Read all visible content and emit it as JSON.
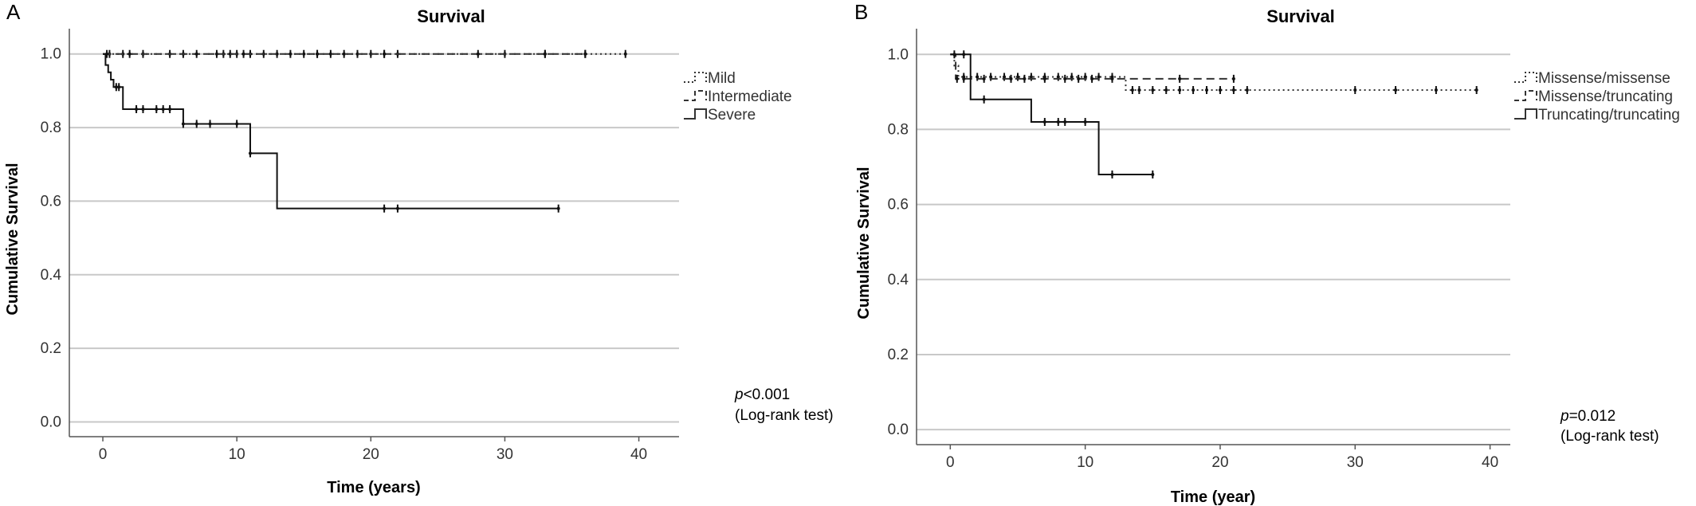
{
  "chart_data": [
    {
      "type": "line",
      "panel_label": "A",
      "title": "Survival",
      "xlabel": "Time (years)",
      "ylabel": "Cumulative Survival",
      "xlim": [
        -2.5,
        43
      ],
      "ylim": [
        -0.04,
        1.06
      ],
      "xticks": [
        0,
        10,
        20,
        30,
        40
      ],
      "yticks": [
        "0.0",
        "0.2",
        "0.4",
        "0.6",
        "0.8",
        "1.0"
      ],
      "grid": "horizontal",
      "legend_position": "right",
      "series": [
        {
          "name": "Mild",
          "style": "dotted",
          "steps": [
            [
              0,
              1.0
            ],
            [
              39,
              1.0
            ]
          ],
          "censored": [
            [
              0.5,
              1.0
            ],
            [
              1.5,
              1.0
            ],
            [
              3,
              1.0
            ],
            [
              5,
              1.0
            ],
            [
              6,
              1.0
            ],
            [
              8.5,
              1.0
            ],
            [
              9,
              1.0
            ],
            [
              9.5,
              1.0
            ],
            [
              10,
              1.0
            ],
            [
              11,
              1.0
            ],
            [
              12,
              1.0
            ],
            [
              13,
              1.0
            ],
            [
              15,
              1.0
            ],
            [
              16,
              1.0
            ],
            [
              17,
              1.0
            ],
            [
              18,
              1.0
            ],
            [
              19,
              1.0
            ],
            [
              20,
              1.0
            ],
            [
              21,
              1.0
            ],
            [
              22,
              1.0
            ],
            [
              30,
              1.0
            ],
            [
              33,
              1.0
            ],
            [
              36,
              1.0
            ],
            [
              39,
              1.0
            ]
          ]
        },
        {
          "name": "Intermediate",
          "style": "dashed",
          "steps": [
            [
              0,
              1.0
            ],
            [
              36,
              1.0
            ]
          ],
          "censored": [
            [
              0.3,
              1.0
            ],
            [
              2,
              1.0
            ],
            [
              7,
              1.0
            ],
            [
              10.5,
              1.0
            ],
            [
              14,
              1.0
            ],
            [
              16,
              1.0
            ],
            [
              21,
              1.0
            ],
            [
              28,
              1.0
            ],
            [
              33,
              1.0
            ],
            [
              36,
              1.0
            ]
          ]
        },
        {
          "name": "Severe",
          "style": "solid",
          "steps": [
            [
              0,
              1.0
            ],
            [
              0.2,
              0.97
            ],
            [
              0.4,
              0.95
            ],
            [
              0.6,
              0.93
            ],
            [
              0.8,
              0.91
            ],
            [
              1.5,
              0.85
            ],
            [
              6,
              0.81
            ],
            [
              11,
              0.73
            ],
            [
              13,
              0.58
            ],
            [
              34,
              0.58
            ]
          ],
          "censored": [
            [
              1.0,
              0.91
            ],
            [
              1.2,
              0.91
            ],
            [
              2.5,
              0.85
            ],
            [
              3,
              0.85
            ],
            [
              4,
              0.85
            ],
            [
              4.5,
              0.85
            ],
            [
              5,
              0.85
            ],
            [
              6,
              0.81
            ],
            [
              7,
              0.81
            ],
            [
              8,
              0.81
            ],
            [
              10,
              0.81
            ],
            [
              11,
              0.73
            ],
            [
              21,
              0.58
            ],
            [
              22,
              0.58
            ],
            [
              34,
              0.58
            ]
          ]
        }
      ],
      "annotation": {
        "p_symbol": "p",
        "p_value": "<0.001",
        "test": "(Log-rank test)"
      }
    },
    {
      "type": "line",
      "panel_label": "B",
      "title": "Survival",
      "xlabel": "Time (year)",
      "ylabel": "Cumulative Survival",
      "xlim": [
        -2.5,
        41.5
      ],
      "ylim": [
        -0.04,
        1.06
      ],
      "xticks": [
        0,
        10,
        20,
        30,
        40
      ],
      "yticks": [
        "0.0",
        "0.2",
        "0.4",
        "0.6",
        "0.8",
        "1.0"
      ],
      "grid": "horizontal",
      "legend_position": "right",
      "series": [
        {
          "name": "Missense/missense",
          "style": "dotted",
          "steps": [
            [
              0,
              1.0
            ],
            [
              0.3,
              0.97
            ],
            [
              0.6,
              0.94
            ],
            [
              13,
              0.905
            ],
            [
              39,
              0.905
            ]
          ],
          "censored": [
            [
              1,
              0.94
            ],
            [
              2,
              0.94
            ],
            [
              3,
              0.94
            ],
            [
              4,
              0.94
            ],
            [
              5,
              0.94
            ],
            [
              6,
              0.94
            ],
            [
              7,
              0.94
            ],
            [
              8,
              0.94
            ],
            [
              9,
              0.94
            ],
            [
              10,
              0.94
            ],
            [
              11,
              0.94
            ],
            [
              12,
              0.94
            ],
            [
              13.5,
              0.905
            ],
            [
              14,
              0.905
            ],
            [
              15,
              0.905
            ],
            [
              16,
              0.905
            ],
            [
              17,
              0.905
            ],
            [
              18,
              0.905
            ],
            [
              19,
              0.905
            ],
            [
              20,
              0.905
            ],
            [
              21,
              0.905
            ],
            [
              22,
              0.905
            ],
            [
              30,
              0.905
            ],
            [
              33,
              0.905
            ],
            [
              36,
              0.905
            ],
            [
              39,
              0.905
            ]
          ]
        },
        {
          "name": "Missense/truncating",
          "style": "dashed",
          "steps": [
            [
              0,
              1.0
            ],
            [
              0.4,
              0.935
            ],
            [
              21,
              0.935
            ]
          ],
          "censored": [
            [
              0.5,
              0.935
            ],
            [
              1,
              0.935
            ],
            [
              2.5,
              0.935
            ],
            [
              4.5,
              0.935
            ],
            [
              5.5,
              0.935
            ],
            [
              7,
              0.935
            ],
            [
              8.5,
              0.935
            ],
            [
              9.5,
              0.935
            ],
            [
              10.5,
              0.935
            ],
            [
              12,
              0.935
            ],
            [
              17,
              0.935
            ],
            [
              21,
              0.935
            ]
          ]
        },
        {
          "name": "Truncating/truncating",
          "style": "solid",
          "steps": [
            [
              0,
              1.0
            ],
            [
              1.5,
              0.88
            ],
            [
              6,
              0.82
            ],
            [
              11,
              0.68
            ],
            [
              15,
              0.68
            ]
          ],
          "censored": [
            [
              0.3,
              1.0
            ],
            [
              1,
              1.0
            ],
            [
              2.5,
              0.88
            ],
            [
              7,
              0.82
            ],
            [
              8,
              0.82
            ],
            [
              8.5,
              0.82
            ],
            [
              10,
              0.82
            ],
            [
              12,
              0.68
            ],
            [
              15,
              0.68
            ]
          ]
        }
      ],
      "annotation": {
        "p_symbol": "p",
        "p_value": "=0.012",
        "test": "(Log-rank test)"
      }
    }
  ]
}
